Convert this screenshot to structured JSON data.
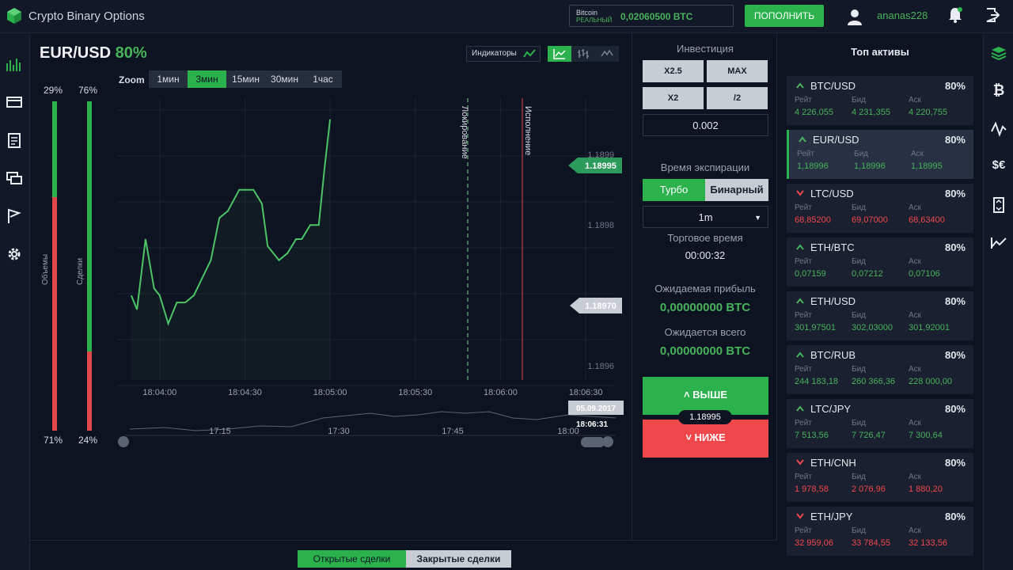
{
  "header": {
    "title": "Crypto Binary Options",
    "wallet": {
      "coin": "Bitcoin",
      "mode": "РЕАЛЬНЫЙ",
      "balance": "0,02060500 BTC"
    },
    "deposit_label": "ПОПОЛНИТЬ",
    "username": "ananas228"
  },
  "chart": {
    "pair": "EUR/USD",
    "payout": "80%",
    "indicators_label": "Индикаторы",
    "zoom_label": "Zoom",
    "zoom_options": [
      "1мин",
      "3мин",
      "15мин",
      "30мин",
      "1час"
    ],
    "zoom_active": "3мин",
    "volumes": {
      "label": "Объемы",
      "up": "29%",
      "down": "71%"
    },
    "deals": {
      "label": "Сделки",
      "up": "76%",
      "down": "24%"
    },
    "lock_label": "Локирование",
    "exec_label": "Исполнение",
    "current_price": "1.18995",
    "entry_price": "1.18970",
    "y_ticks": [
      "1.1899",
      "1.1898",
      "1.1896"
    ],
    "x_ticks": [
      "18:04:00",
      "18:04:30",
      "18:05:00",
      "18:05:30",
      "18:06:00",
      "18:06:30"
    ],
    "nav_ticks": [
      "17:15",
      "17:30",
      "17:45",
      "18:00"
    ],
    "nav_date": "05.09.2017",
    "nav_time": "18:06:31"
  },
  "trade": {
    "invest_label": "Инвестиция",
    "mult": [
      "X2.5",
      "MAX",
      "X2",
      "/2"
    ],
    "amount": "0.002",
    "expiry_label": "Время экспирации",
    "turbo": "Турбо",
    "binary": "Бинарный",
    "expiry_value": "1m",
    "trade_time_label": "Торговое время",
    "trade_time": "00:00:32",
    "expected_profit_label": "Ожидаемая прибыль",
    "expected_profit": "0,00000000 BTC",
    "expected_total_label": "Ожидается всего",
    "expected_total": "0,00000000 BTC",
    "up_label": "˄ ВЫШЕ",
    "down_label": "˅ НИЖЕ",
    "mid_price": "1.18995"
  },
  "assets": {
    "title": "Топ активы",
    "col_labels": [
      "Рейт",
      "Бид",
      "Аск"
    ],
    "items": [
      {
        "name": "BTC/USD",
        "pct": "80%",
        "dir": "up",
        "rate": "4 226,055",
        "bid": "4 231,355",
        "ask": "4 220,755"
      },
      {
        "name": "EUR/USD",
        "pct": "80%",
        "dir": "up",
        "rate": "1,18996",
        "bid": "1,18996",
        "ask": "1,18995",
        "active": true
      },
      {
        "name": "LTC/USD",
        "pct": "80%",
        "dir": "down",
        "rate": "68,85200",
        "bid": "69,07000",
        "ask": "68,63400"
      },
      {
        "name": "ETH/BTC",
        "pct": "80%",
        "dir": "up",
        "rate": "0,07159",
        "bid": "0,07212",
        "ask": "0,07106"
      },
      {
        "name": "ETH/USD",
        "pct": "80%",
        "dir": "up",
        "rate": "301,97501",
        "bid": "302,03000",
        "ask": "301,92001"
      },
      {
        "name": "BTC/RUB",
        "pct": "80%",
        "dir": "up",
        "rate": "244 183,18",
        "bid": "260 366,36",
        "ask": "228 000,00"
      },
      {
        "name": "LTC/JPY",
        "pct": "80%",
        "dir": "up",
        "rate": "7 513,56",
        "bid": "7 726,47",
        "ask": "7 300,64"
      },
      {
        "name": "ETH/CNH",
        "pct": "80%",
        "dir": "down",
        "rate": "1 978,58",
        "bid": "2 076,96",
        "ask": "1 880,20"
      },
      {
        "name": "ETH/JPY",
        "pct": "80%",
        "dir": "down",
        "rate": "32 959,06",
        "bid": "33 784,55",
        "ask": "32 133,56"
      }
    ]
  },
  "bottom": {
    "open_tab": "Открытые сделки",
    "closed_tab": "Закрытые сделки"
  },
  "colors": {
    "green": "#2bb24c",
    "red": "#f0474a",
    "bg": "#0e1322"
  },
  "chart_data": {
    "type": "line",
    "x": [
      "18:03:50",
      "18:03:52",
      "18:03:55",
      "18:03:58",
      "18:04:00",
      "18:04:03",
      "18:04:06",
      "18:04:09",
      "18:04:12",
      "18:04:18",
      "18:04:21",
      "18:04:24",
      "18:04:28",
      "18:04:33",
      "18:04:36",
      "18:04:38",
      "18:04:42",
      "18:04:45",
      "18:04:48",
      "18:04:50",
      "18:04:53",
      "18:04:56",
      "18:04:58",
      "18:05:00"
    ],
    "values": [
      1.1897,
      1.18968,
      1.18978,
      1.18971,
      1.1897,
      1.18966,
      1.18969,
      1.18969,
      1.1897,
      1.18975,
      1.18981,
      1.18982,
      1.18985,
      1.18985,
      1.18983,
      1.18977,
      1.18975,
      1.18976,
      1.18978,
      1.18978,
      1.1898,
      1.1898,
      1.18988,
      1.18995
    ],
    "ylim": [
      1.18958,
      1.18998
    ]
  }
}
